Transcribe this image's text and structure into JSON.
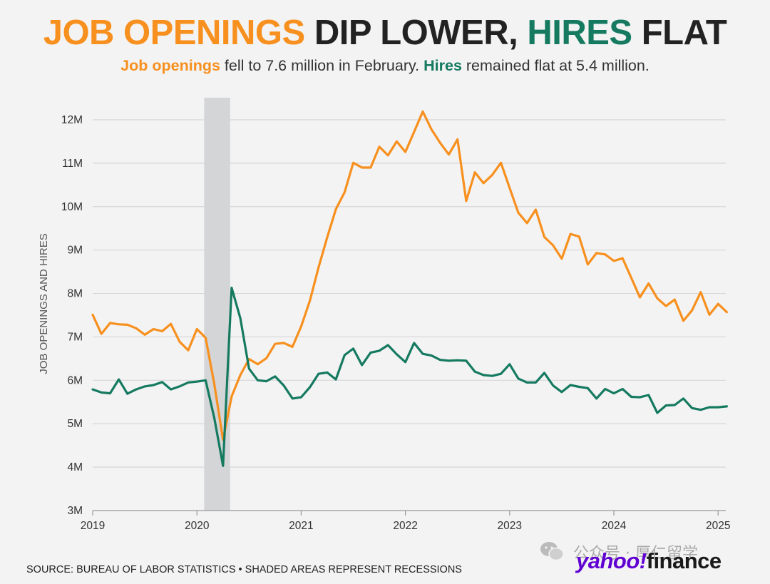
{
  "header": {
    "title_part1": "JOB OPENINGS",
    "title_part2": "DIP LOWER,",
    "title_part3": "HIRES",
    "title_part4": "FLAT",
    "subtitle_part1": "Job openings",
    "subtitle_part2": " fell to 7.6 million in February. ",
    "subtitle_part3": "Hires",
    "subtitle_part4": " remained flat at 5.4 million."
  },
  "footer": {
    "source": "SOURCE: BUREAU OF LABOR STATISTICS • SHADED AREAS REPRESENT RECESSIONS",
    "watermark": "公众号 · 厚仁留学",
    "brand_part1": "yahoo!",
    "brand_part2": "finance"
  },
  "colors": {
    "openings": "#f7901e",
    "hires": "#157a5f",
    "recession": "#d4d5d7",
    "grid": "#d6d6d8",
    "text": "#222222"
  },
  "icons": [
    "wechat-icon"
  ],
  "chart_data": {
    "type": "line",
    "title": "JOB OPENINGS DIP LOWER, HIRES FLAT",
    "ylabel": "JOB OPENINGS AND HIRES",
    "xlabel": "",
    "ylim": [
      3,
      12.3
    ],
    "y_ticks": [
      3,
      4,
      5,
      6,
      7,
      8,
      9,
      10,
      11,
      12
    ],
    "y_tick_labels": [
      "3M",
      "4M",
      "5M",
      "6M",
      "7M",
      "8M",
      "9M",
      "10M",
      "11M",
      "12M"
    ],
    "x_ticks": [
      "2019",
      "2020",
      "2021",
      "2022",
      "2023",
      "2024",
      "2025"
    ],
    "x_start": "2019-01",
    "x_end": "2025-02",
    "recession": {
      "start": "2020-02",
      "end": "2020-04"
    },
    "grid": true,
    "legend": "none",
    "series": [
      {
        "name": "Job openings",
        "color": "#f7901e",
        "values": [
          7.51,
          7.07,
          7.32,
          7.29,
          7.28,
          7.2,
          7.05,
          7.18,
          7.13,
          7.3,
          6.89,
          6.69,
          7.18,
          6.98,
          5.91,
          4.63,
          5.63,
          6.12,
          6.49,
          6.37,
          6.51,
          6.84,
          6.86,
          6.77,
          7.24,
          7.83,
          8.6,
          9.29,
          9.94,
          10.33,
          11.01,
          10.9,
          10.9,
          11.38,
          11.18,
          11.5,
          11.26,
          11.72,
          12.19,
          11.78,
          11.47,
          11.2,
          11.55,
          10.13,
          10.79,
          10.54,
          10.73,
          11.01,
          10.43,
          9.86,
          9.62,
          9.93,
          9.3,
          9.11,
          8.8,
          9.37,
          9.31,
          8.67,
          8.93,
          8.9,
          8.75,
          8.81,
          8.36,
          7.91,
          8.23,
          7.89,
          7.71,
          7.86,
          7.37,
          7.61,
          8.03,
          7.51,
          7.76,
          7.57
        ]
      },
      {
        "name": "Hires",
        "color": "#157a5f",
        "values": [
          5.79,
          5.72,
          5.7,
          6.02,
          5.69,
          5.79,
          5.86,
          5.89,
          5.96,
          5.79,
          5.86,
          5.95,
          5.97,
          6.0,
          5.13,
          4.03,
          8.13,
          7.43,
          6.27,
          6.0,
          5.98,
          6.09,
          5.88,
          5.58,
          5.61,
          5.84,
          6.15,
          6.18,
          6.02,
          6.58,
          6.73,
          6.35,
          6.64,
          6.68,
          6.81,
          6.6,
          6.42,
          6.86,
          6.61,
          6.57,
          6.47,
          6.45,
          6.46,
          6.45,
          6.2,
          6.12,
          6.1,
          6.15,
          6.37,
          6.04,
          5.95,
          5.95,
          6.17,
          5.88,
          5.73,
          5.89,
          5.85,
          5.82,
          5.58,
          5.8,
          5.7,
          5.8,
          5.62,
          5.61,
          5.66,
          5.25,
          5.42,
          5.43,
          5.58,
          5.36,
          5.32,
          5.38,
          5.38,
          5.4
        ]
      }
    ]
  }
}
